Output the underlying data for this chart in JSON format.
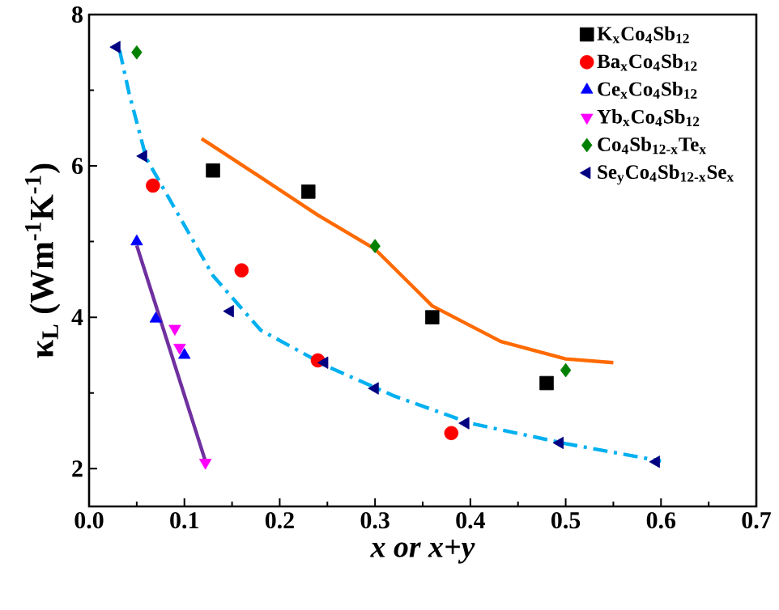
{
  "chart_data": {
    "type": "scatter",
    "xlabel": "x or x+y",
    "ylabel": "κ$_{L}$ (Wm$^{-1}$K$^{-1}$)",
    "xlim": [
      0,
      0.7
    ],
    "ylim": [
      1.5,
      8
    ],
    "xticks": [
      {
        "value": 0,
        "label": "0.0"
      },
      0.1,
      0.2,
      0.3,
      0.4,
      0.5,
      0.6,
      0.7
    ],
    "yticks": [
      2,
      4,
      6,
      8
    ],
    "legend": "top right",
    "grid": false,
    "series": [
      {
        "name": "K$_{x}$Co$_{4}$Sb$_{12}$",
        "color": "#000000",
        "marker": "square",
        "x": [
          0.13,
          0.23,
          0.36,
          0.48
        ],
        "values": [
          5.94,
          5.66,
          4.0,
          3.13
        ]
      },
      {
        "name": "Ba$_{x}$Co$_{4}$Sb$_{12}$",
        "color": "#ff0000",
        "marker": "circle",
        "x": [
          0.067,
          0.16,
          0.24,
          0.38
        ],
        "values": [
          5.74,
          4.62,
          3.43,
          2.47
        ]
      },
      {
        "name": "Ce$_{x}$Co$_{4}$Sb$_{12}$",
        "color": "#0000ff",
        "marker": "triangle",
        "x": [
          0.05,
          0.07,
          0.1
        ],
        "values": [
          5.0,
          3.98,
          3.5
        ]
      },
      {
        "name": "Yb$_{x}$Co$_{4}$Sb$_{12}$",
        "color": "#ff00ff",
        "marker": "triangle-down",
        "x": [
          0.09,
          0.095,
          0.122
        ],
        "values": [
          3.85,
          3.6,
          2.08
        ]
      },
      {
        "name": "Co$_{4}$Sb$_{12-x}$Te$_{x}$",
        "color": "#008000",
        "marker": "diamond",
        "x": [
          0.05,
          0.3,
          0.5
        ],
        "values": [
          7.5,
          4.94,
          3.3
        ]
      },
      {
        "name": "Se$_{y}$Co$_{4}$Sb$_{12-x}$Se$_{x}$",
        "color": "#000080",
        "marker": "triangle-left",
        "x": [
          0.029,
          0.057,
          0.148,
          0.247,
          0.3,
          0.395,
          0.494,
          0.595
        ],
        "values": [
          7.57,
          6.13,
          4.08,
          3.4,
          3.06,
          2.6,
          2.34,
          2.09
        ]
      },
      {
        "type": "line",
        "color": "#ff6a00",
        "line_style": "solid",
        "x": [
          0.118,
          0.18,
          0.24,
          0.3,
          0.36,
          0.432,
          0.5,
          0.55
        ],
        "values": [
          6.36,
          5.85,
          5.35,
          4.9,
          4.15,
          3.68,
          3.45,
          3.4
        ]
      },
      {
        "type": "line",
        "color": "#00b0f0",
        "line_style": "dashdot",
        "x": [
          0.032,
          0.042,
          0.06,
          0.084,
          0.13,
          0.18,
          0.25,
          0.32,
          0.4,
          0.5,
          0.6
        ],
        "values": [
          7.53,
          6.96,
          6.1,
          5.57,
          4.55,
          3.83,
          3.35,
          2.96,
          2.6,
          2.33,
          2.1
        ]
      },
      {
        "type": "line",
        "color": "#7030a0",
        "line_style": "solid",
        "x": [
          0.05,
          0.122
        ],
        "values": [
          4.95,
          2.1
        ]
      }
    ]
  }
}
